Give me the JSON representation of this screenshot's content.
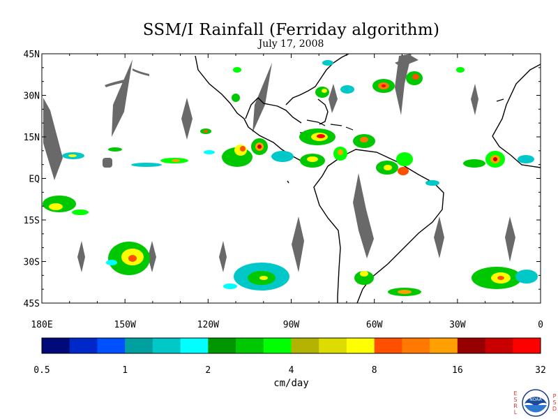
{
  "title": "SSM/I Rainfall (Ferriday algorithm)",
  "subtitle": "July 17, 2008",
  "y_axis_labels": [
    "45N",
    "30N",
    "15N",
    "EQ",
    "15S",
    "30S",
    "45S"
  ],
  "y_axis_values": [
    45,
    30,
    15,
    0,
    -15,
    -30,
    -45
  ],
  "x_axis_labels": [
    "180E",
    "150W",
    "120W",
    "90W",
    "60W",
    "30W",
    "0"
  ],
  "x_axis_values": [
    -180,
    -150,
    -120,
    -90,
    -60,
    -30,
    0
  ],
  "map_extent": {
    "lon": [
      -180,
      0
    ],
    "lat": [
      -45,
      45
    ]
  },
  "legend": {
    "colors": [
      "#000a78",
      "#0028c8",
      "#0050ff",
      "#00a0a0",
      "#00c8c8",
      "#00ffff",
      "#009600",
      "#00c800",
      "#00ff00",
      "#b4b400",
      "#dcdc00",
      "#ffff00",
      "#ff5000",
      "#ff7800",
      "#ffa000",
      "#960000",
      "#c80000",
      "#ff0000"
    ],
    "tick_labels": [
      "0.5",
      "1",
      "2",
      "4",
      "8",
      "16",
      "32"
    ],
    "units": "cm/day"
  },
  "logo": {
    "left_letters": [
      "E",
      "S",
      "R",
      "L"
    ],
    "right_letters": [
      "P",
      "S",
      "D"
    ],
    "center_text": "NOAA"
  },
  "colors": {
    "swath_gap": "#696969",
    "coast": "#000000"
  }
}
